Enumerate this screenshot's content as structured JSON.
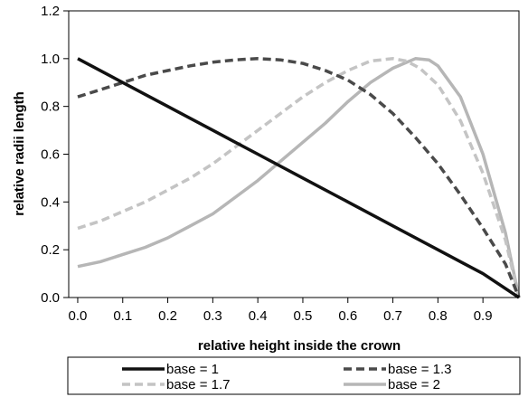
{
  "chart_data": {
    "type": "line",
    "title": "",
    "xlabel": "relative height inside the crown",
    "ylabel": "relative radii length",
    "xlim": [
      -0.02,
      0.98
    ],
    "ylim": [
      0,
      1.2
    ],
    "x_ticks": [
      "0.0",
      "0.1",
      "0.2",
      "0.3",
      "0.4",
      "0.5",
      "0.6",
      "0.7",
      "0.8",
      "0.9"
    ],
    "y_ticks": [
      "0.0",
      "0.2",
      "0.4",
      "0.6",
      "0.8",
      "1.0",
      "1.2"
    ],
    "grid": false,
    "legend_position": "bottom",
    "series": [
      {
        "name": "base = 1",
        "color": "#111111",
        "style": "solid",
        "x": [
          0.0,
          0.1,
          0.2,
          0.3,
          0.4,
          0.5,
          0.6,
          0.7,
          0.8,
          0.9,
          0.98
        ],
        "y": [
          1.0,
          0.9,
          0.8,
          0.7,
          0.6,
          0.5,
          0.4,
          0.3,
          0.2,
          0.1,
          0.0
        ]
      },
      {
        "name": "base = 1.3",
        "color": "#4a4a4a",
        "style": "dashed",
        "x": [
          0.0,
          0.05,
          0.1,
          0.15,
          0.2,
          0.25,
          0.3,
          0.35,
          0.4,
          0.45,
          0.5,
          0.55,
          0.6,
          0.65,
          0.7,
          0.75,
          0.8,
          0.85,
          0.9,
          0.95,
          0.98
        ],
        "y": [
          0.84,
          0.87,
          0.9,
          0.93,
          0.95,
          0.97,
          0.985,
          0.995,
          1.0,
          0.995,
          0.98,
          0.95,
          0.91,
          0.85,
          0.77,
          0.67,
          0.56,
          0.43,
          0.29,
          0.14,
          0.0
        ]
      },
      {
        "name": "base = 1.7",
        "color": "#c4c4c4",
        "style": "dashed",
        "x": [
          0.0,
          0.05,
          0.1,
          0.15,
          0.2,
          0.25,
          0.3,
          0.35,
          0.4,
          0.45,
          0.5,
          0.55,
          0.6,
          0.65,
          0.7,
          0.73,
          0.76,
          0.8,
          0.85,
          0.9,
          0.95,
          0.98
        ],
        "y": [
          0.29,
          0.32,
          0.36,
          0.4,
          0.45,
          0.5,
          0.56,
          0.63,
          0.7,
          0.77,
          0.84,
          0.9,
          0.95,
          0.99,
          1.0,
          0.99,
          0.96,
          0.89,
          0.74,
          0.52,
          0.24,
          0.0
        ]
      },
      {
        "name": "base = 2",
        "color": "#b6b6b6",
        "style": "solid",
        "x": [
          0.0,
          0.05,
          0.1,
          0.15,
          0.2,
          0.25,
          0.3,
          0.35,
          0.4,
          0.45,
          0.5,
          0.55,
          0.6,
          0.65,
          0.7,
          0.75,
          0.78,
          0.8,
          0.85,
          0.9,
          0.95,
          0.98
        ],
        "y": [
          0.13,
          0.15,
          0.18,
          0.21,
          0.25,
          0.3,
          0.35,
          0.42,
          0.49,
          0.57,
          0.65,
          0.73,
          0.82,
          0.9,
          0.96,
          1.0,
          0.995,
          0.97,
          0.84,
          0.6,
          0.27,
          0.0
        ]
      }
    ]
  }
}
